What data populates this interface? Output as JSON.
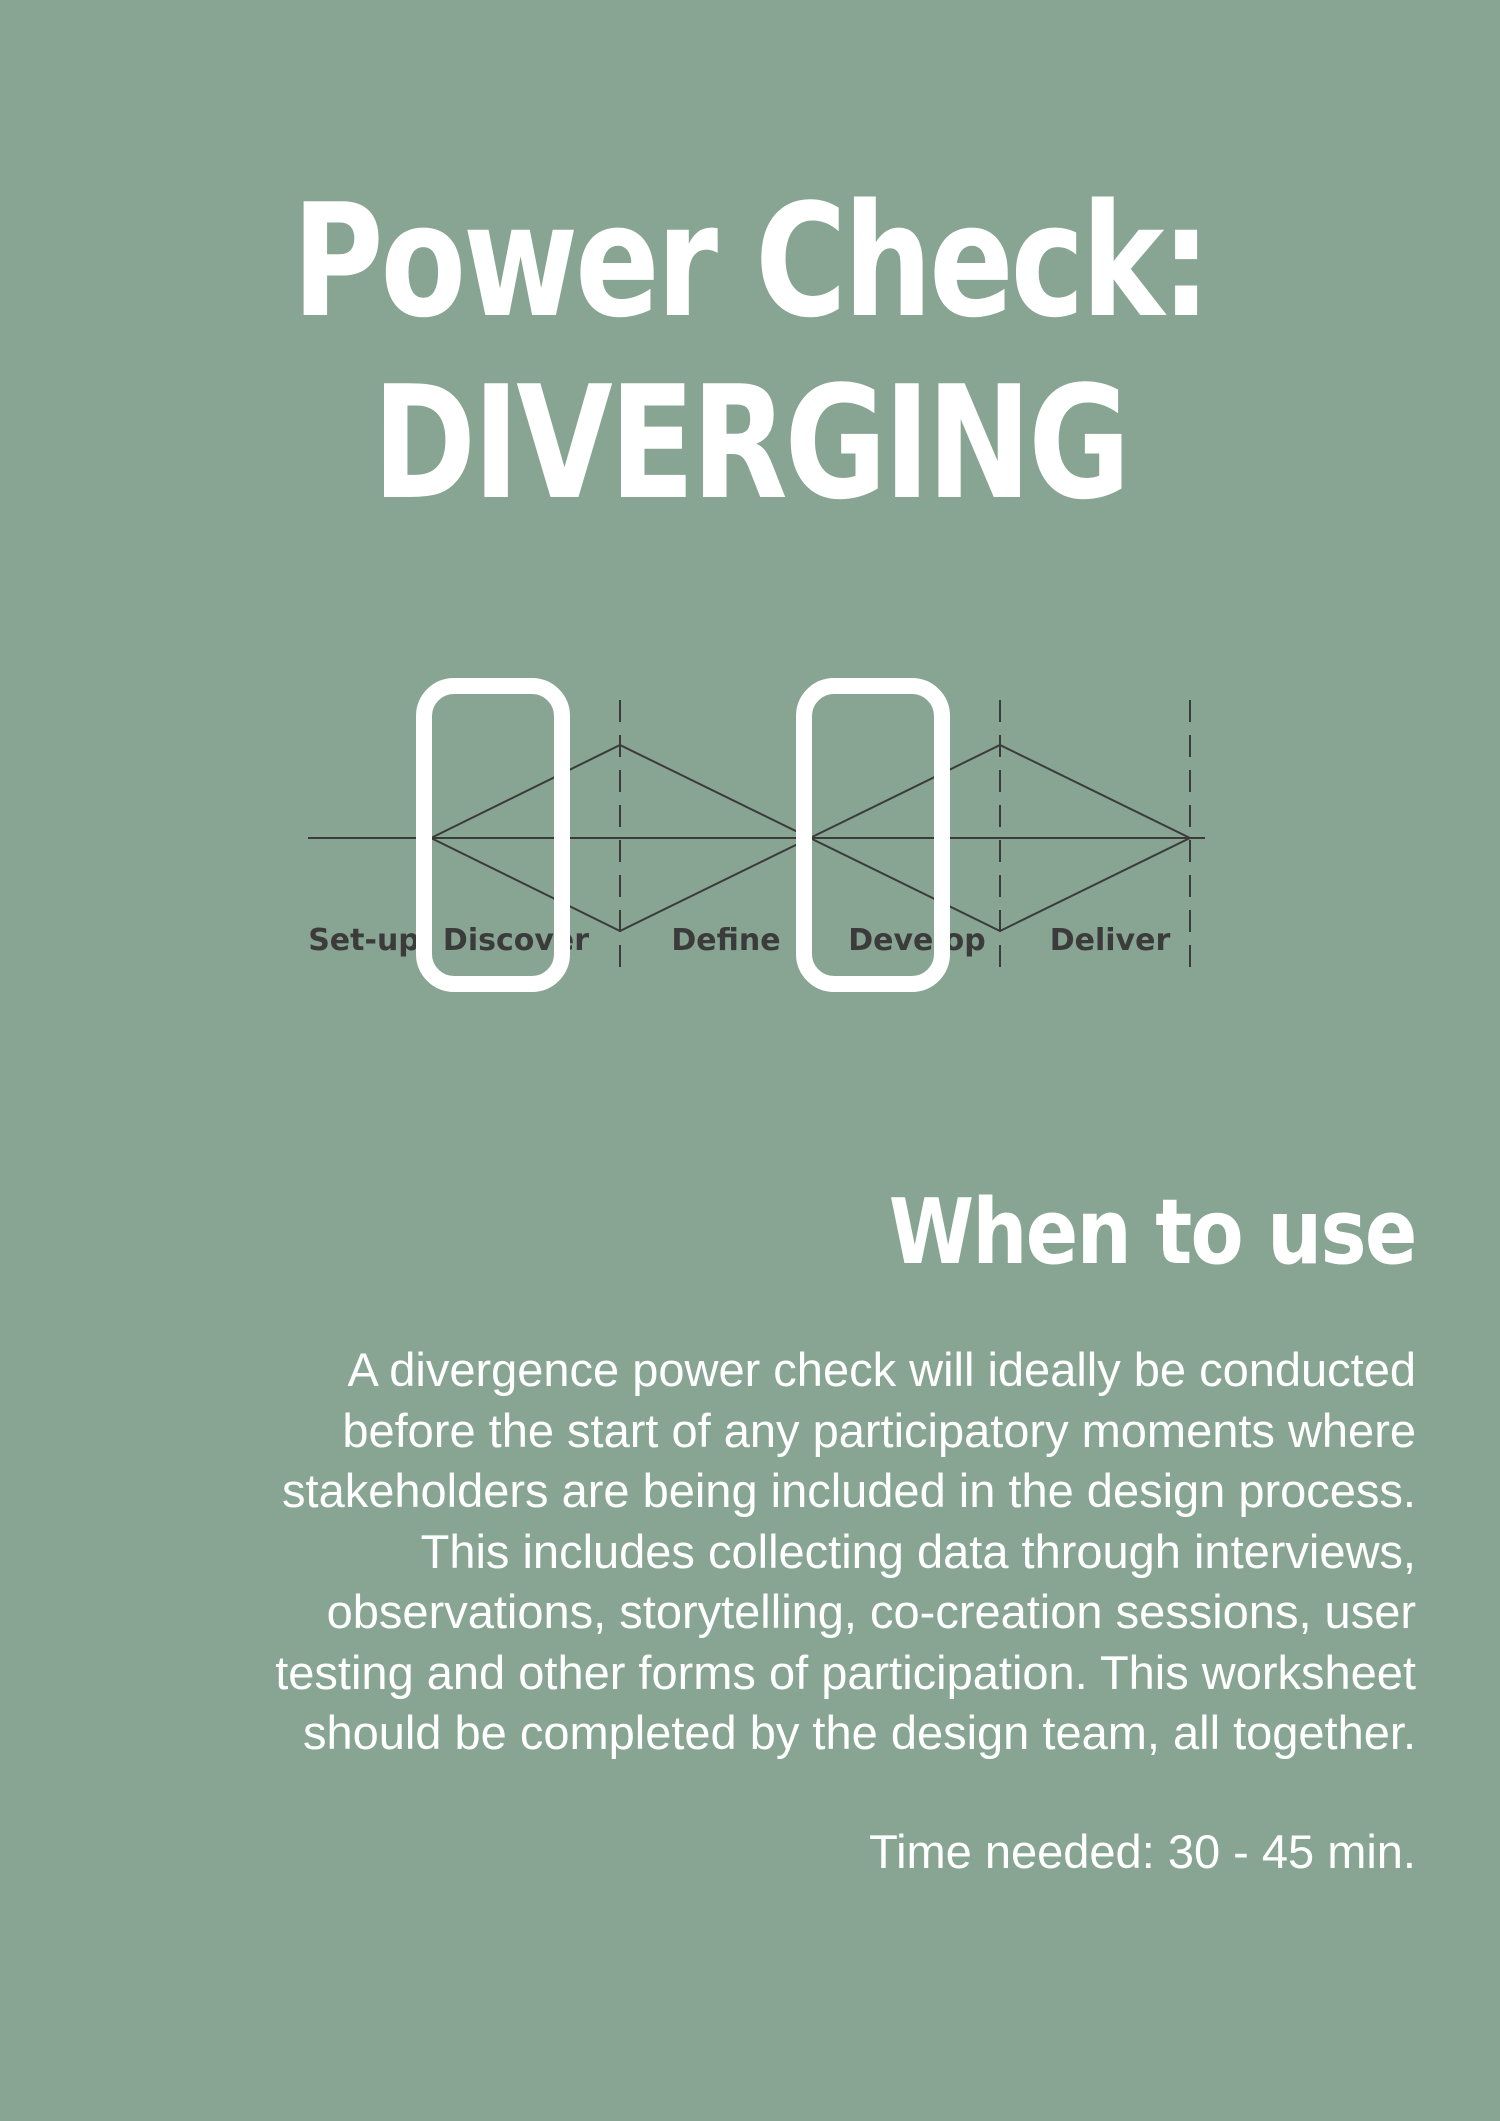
{
  "title": {
    "line1": "Power Check:",
    "line2": "DIVERGING"
  },
  "diagram": {
    "phases": [
      "Set-up",
      "Discover",
      "Define",
      "Develop",
      "Deliver"
    ]
  },
  "when_to_use": {
    "heading": "When to use",
    "lines": [
      "A divergence power check will ideally be conducted",
      "before the start of any participatory moments where",
      "stakeholders are being included in the design process.",
      "This includes collecting data through interviews,",
      "observations, storytelling, co-creation sessions, user",
      "testing and other forms of participation. This worksheet",
      "should be completed by the design team, all together."
    ],
    "time_needed": "Time needed: 30 - 45 min."
  },
  "colors": {
    "background": "#87a592",
    "text": "#ffffff",
    "diagram_line": "#3b3b3b",
    "highlight": "#ffffff"
  }
}
